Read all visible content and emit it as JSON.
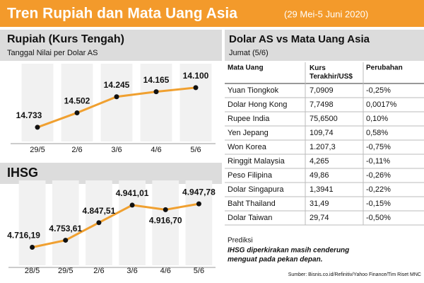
{
  "title": "Tren Rupiah dan Mata Uang Asia",
  "subtitle": "(29 Mei-5 Juni 2020)",
  "chart_data": [
    {
      "type": "line",
      "title": "Rupiah (Kurs Tengah)",
      "subtitle": "Tanggal  Nilai per Dolar AS",
      "categories": [
        "29/5",
        "2/6",
        "3/6",
        "4/6",
        "5/6"
      ],
      "values": [
        14733,
        14502,
        14245,
        14165,
        14100
      ],
      "value_labels": [
        "14.733",
        "14.502",
        "14.245",
        "14.165",
        "14.100"
      ],
      "ylim": [
        14960,
        13830
      ],
      "color": "#f0a030"
    },
    {
      "type": "line",
      "title": "IHSG",
      "categories": [
        "28/5",
        "29/5",
        "2/6",
        "3/6",
        "4/6",
        "5/6"
      ],
      "values": [
        4716.19,
        4753.61,
        4847.51,
        4941.01,
        4916.7,
        4947.78
      ],
      "value_labels": [
        "4.716,19",
        "4.753,61",
        "4.847,51",
        "4.941,01",
        "4.916,70",
        "4.947,78"
      ],
      "ylim": [
        4620,
        5035
      ],
      "color": "#f0a030"
    }
  ],
  "table": {
    "title": "Dolar AS vs Mata Uang Asia",
    "subtitle": "Jumat (5/6)",
    "columns": [
      "Mata Uang",
      "Kurs Terakhir/US$",
      "Perubahan"
    ],
    "rows": [
      [
        "Yuan Tiongkok",
        "7,0909",
        "-0,25%"
      ],
      [
        "Dolar Hong Kong",
        "7,7498",
        "0,0017%"
      ],
      [
        "Rupee India",
        "75,6500",
        "0,10%"
      ],
      [
        "Yen Jepang",
        "109,74",
        "0,58%"
      ],
      [
        "Won Korea",
        "1.207,3",
        "-0,75%"
      ],
      [
        "Ringgit Malaysia",
        "4,265",
        "-0,11%"
      ],
      [
        "Peso Filipina",
        "49,86",
        "-0,26%"
      ],
      [
        "Dolar Singapura",
        "1,3941",
        "-0,22%"
      ],
      [
        "Baht Thailand",
        "31,49",
        "-0,15%"
      ],
      [
        "Dolar Taiwan",
        "29,74",
        "-0,50%"
      ]
    ]
  },
  "note": {
    "title": "Prediksi",
    "text": "IHSG diperkirakan masih cenderung",
    "text2": "menguat pada pekan depan."
  },
  "source": "Sumber: Bisnis.co.id/Refinitiv/Yahoo Finance/Tim Riset MNC"
}
